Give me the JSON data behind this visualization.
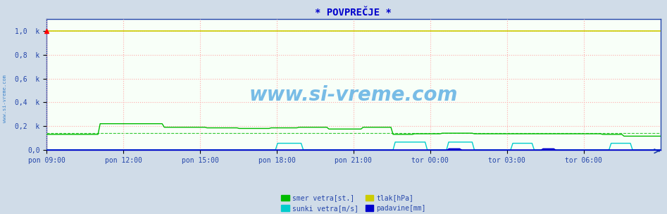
{
  "title": "* POVPREČJE *",
  "bg_color": "#d0dce8",
  "plot_bg_color": "#f8fff8",
  "title_color": "#0000cc",
  "axis_color": "#2244aa",
  "tick_color": "#2244aa",
  "watermark": "www.si-vreme.com",
  "watermark_color": "#3399dd",
  "figsize": [
    9.47,
    3.04
  ],
  "dpi": 100,
  "ylim": [
    0.0,
    1.1
  ],
  "yticks": [
    0.0,
    0.2,
    0.4,
    0.6,
    0.8,
    1.0
  ],
  "ytick_labels": [
    "0,0",
    "0,2  k",
    "0,4  k",
    "0,6  k",
    "0,8  k",
    "1,0  k"
  ],
  "xtick_labels": [
    "pon 09:00",
    "pon 12:00",
    "pon 15:00",
    "pon 18:00",
    "pon 21:00",
    "tor 00:00",
    "tor 03:00",
    "tor 06:00"
  ],
  "n_points": 288,
  "grid_color": "#ffaaaa",
  "legend_items": [
    {
      "label": "smer vetra[st.]",
      "color": "#00bb00"
    },
    {
      "label": "sunki vetra[m/s]",
      "color": "#00cccc"
    },
    {
      "label": "tlak[hPa]",
      "color": "#cccc00"
    },
    {
      "label": "padavine[mm]",
      "color": "#0000cc"
    }
  ],
  "tlak_color": "#cccc00",
  "smer_color": "#00bb00",
  "sunki_color": "#00cccc",
  "padavine_color": "#0000cc",
  "left_rotated_label": "www.si-vreme.com",
  "left_label_color": "#4488cc"
}
